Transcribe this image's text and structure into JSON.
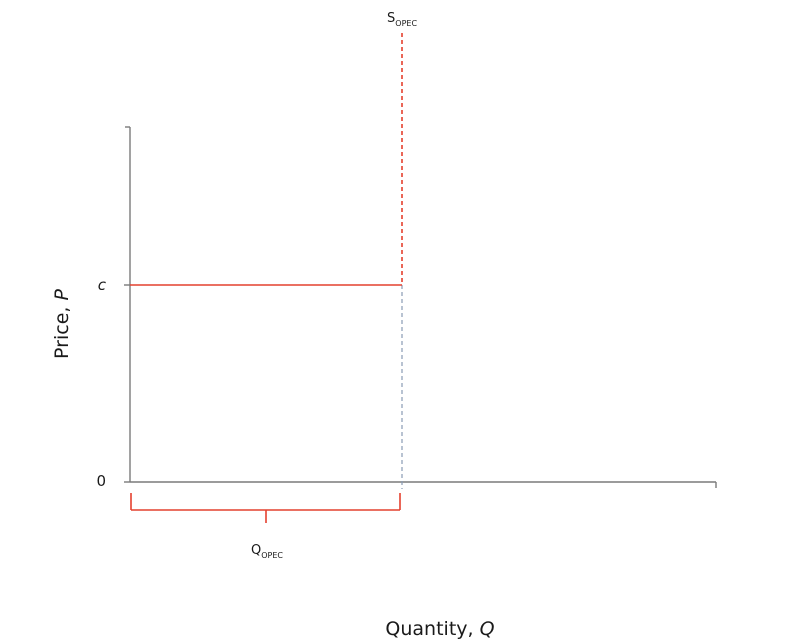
{
  "diagram": {
    "x_axis_label": "Quantity, ",
    "x_axis_var": "Q",
    "y_axis_label": "Price, ",
    "y_axis_var": "P",
    "y_ticks": {
      "zero": "0",
      "c": "c"
    },
    "supply_label": {
      "main": "S",
      "sub": "OPEC"
    },
    "bracket_label": {
      "main": "Q",
      "sub": "OPEC"
    },
    "colors": {
      "axis": "#7a7a7a",
      "curve": "#e4402e",
      "guide": "#8a9bb5",
      "text": "#1a1a1a"
    }
  }
}
